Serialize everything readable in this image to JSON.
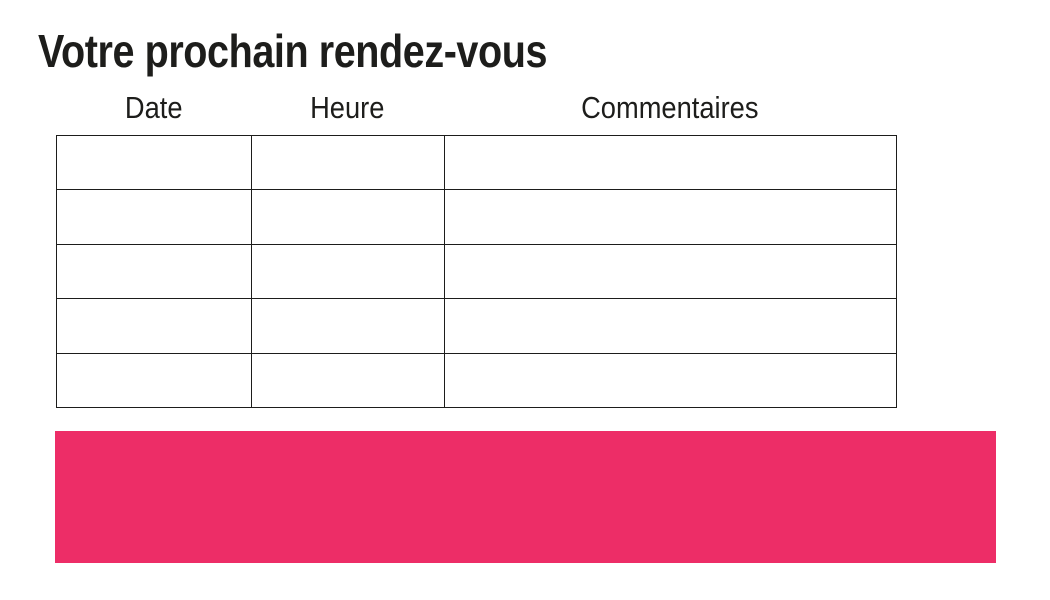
{
  "page": {
    "title": "Votre prochain rendez-vous",
    "background_color": "#ffffff",
    "text_color": "#1d1d1b"
  },
  "appointments_table": {
    "headers": [
      "Date",
      "Heure",
      "Commentaires"
    ],
    "rows": [
      [
        "",
        "",
        ""
      ],
      [
        "",
        "",
        ""
      ],
      [
        "",
        "",
        ""
      ],
      [
        "",
        "",
        ""
      ],
      [
        "",
        "",
        ""
      ]
    ]
  },
  "banner": {
    "accent_color": "#ed2d67"
  }
}
